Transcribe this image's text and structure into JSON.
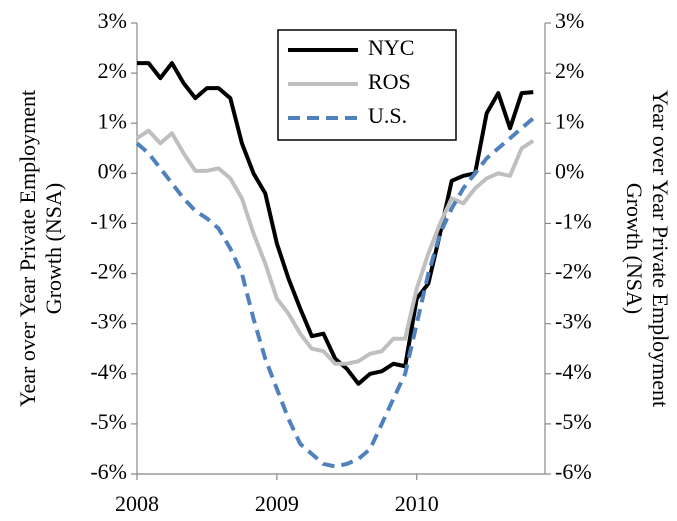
{
  "chart_data": {
    "type": "line",
    "ylabel": [
      "Year over Year Private Employment",
      "Growth (NSA)"
    ],
    "y2label": [
      "Year over Year Private Employment",
      "Growth (NSA)"
    ],
    "x": [
      2008,
      2008.083,
      2008.167,
      2008.25,
      2008.333,
      2008.417,
      2008.5,
      2008.583,
      2008.667,
      2008.75,
      2008.833,
      2008.917,
      2009,
      2009.083,
      2009.167,
      2009.25,
      2009.333,
      2009.417,
      2009.5,
      2009.583,
      2009.667,
      2009.75,
      2009.833,
      2009.917,
      2010,
      2010.083,
      2010.167,
      2010.25,
      2010.333,
      2010.417,
      2010.5,
      2010.583,
      2010.667,
      2010.75,
      2010.833
    ],
    "xlim": [
      2008,
      2010.917
    ],
    "xticks": [
      2008,
      2009,
      2010
    ],
    "ylim": [
      -6,
      3
    ],
    "yticks": [
      {
        "value": -6,
        "label": "-6%"
      },
      {
        "value": -5,
        "label": "-5%"
      },
      {
        "value": -4,
        "label": "-4%"
      },
      {
        "value": -3,
        "label": "-3%"
      },
      {
        "value": -2,
        "label": "-2%"
      },
      {
        "value": -1,
        "label": "-1%"
      },
      {
        "value": 0,
        "label": "0%"
      },
      {
        "value": 1,
        "label": "1%"
      },
      {
        "value": 2,
        "label": "2%"
      },
      {
        "value": 3,
        "label": "3%"
      }
    ],
    "y2lim": [
      -6,
      3
    ],
    "y2ticks": [
      {
        "value": -6,
        "label": "-6%"
      },
      {
        "value": -5,
        "label": "-5%"
      },
      {
        "value": -4,
        "label": "-4%"
      },
      {
        "value": -3,
        "label": "-3%"
      },
      {
        "value": -2,
        "label": "-2%"
      },
      {
        "value": -1,
        "label": "-1%"
      },
      {
        "value": 0,
        "label": "0%"
      },
      {
        "value": 1,
        "label": "1%"
      },
      {
        "value": 2,
        "label": "2%"
      },
      {
        "value": 3,
        "label": "3%"
      }
    ],
    "grid": false,
    "legend": "top",
    "series": [
      {
        "name": "NYC",
        "color": "#000000",
        "dash": false,
        "values": [
          2.2,
          2.2,
          1.9,
          2.2,
          1.8,
          1.5,
          1.7,
          1.7,
          1.5,
          0.6,
          0.0,
          -0.4,
          -1.4,
          -2.1,
          -2.7,
          -3.25,
          -3.2,
          -3.7,
          -3.9,
          -4.2,
          -4.0,
          -3.95,
          -3.8,
          -3.85,
          -2.5,
          -2.2,
          -1.2,
          -0.15,
          -0.05,
          0.0,
          1.2,
          1.6,
          0.9,
          1.6,
          1.62
        ]
      },
      {
        "name": "ROS",
        "color": "#bfbfbf",
        "dash": false,
        "values": [
          0.7,
          0.85,
          0.6,
          0.8,
          0.4,
          0.05,
          0.05,
          0.1,
          -0.1,
          -0.5,
          -1.2,
          -1.8,
          -2.5,
          -2.8,
          -3.2,
          -3.5,
          -3.55,
          -3.8,
          -3.8,
          -3.75,
          -3.6,
          -3.55,
          -3.3,
          -3.3,
          -2.3,
          -1.6,
          -1.0,
          -0.5,
          -0.6,
          -0.3,
          -0.1,
          0.0,
          -0.05,
          0.5,
          0.65
        ]
      },
      {
        "name": "U.S.",
        "color": "#4f81bd",
        "dash": true,
        "values": [
          0.6,
          0.4,
          0.1,
          -0.2,
          -0.5,
          -0.75,
          -0.9,
          -1.1,
          -1.5,
          -2.0,
          -2.9,
          -3.7,
          -4.3,
          -4.9,
          -5.4,
          -5.6,
          -5.8,
          -5.85,
          -5.8,
          -5.7,
          -5.5,
          -5.0,
          -4.5,
          -4.0,
          -3.0,
          -2.0,
          -1.2,
          -0.7,
          -0.3,
          0.0,
          0.3,
          0.5,
          0.7,
          0.9,
          1.1
        ]
      }
    ]
  }
}
